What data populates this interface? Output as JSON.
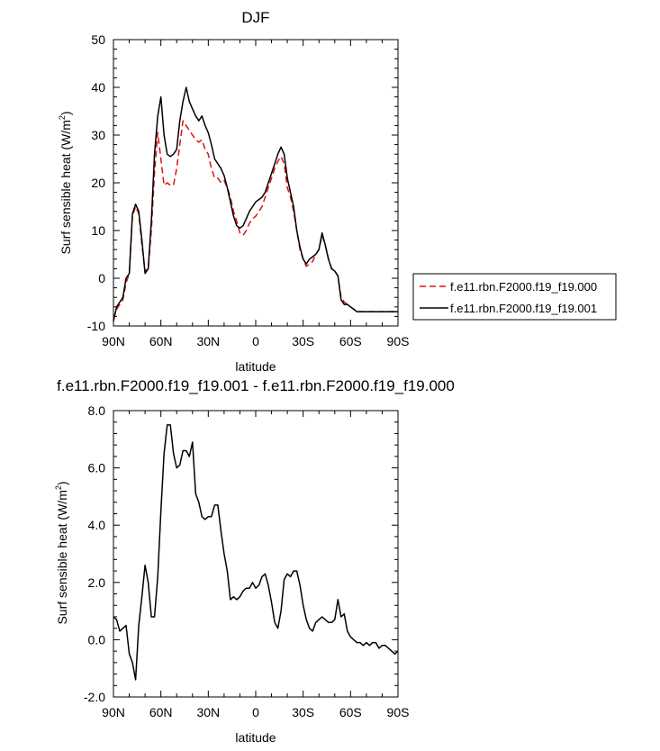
{
  "chart_data": [
    {
      "type": "line",
      "title": "DJF",
      "xlabel": "latitude",
      "ylabel": "Surf sensible heat (W/m",
      "ylabel_sup": "2",
      "ylabel_tail": ")",
      "xlim": [
        90,
        -90
      ],
      "ylim": [
        -10,
        50
      ],
      "xticks": [
        90,
        60,
        30,
        0,
        -30,
        -60,
        -90
      ],
      "xtick_labels": [
        "90N",
        "60N",
        "30N",
        "0",
        "30S",
        "60S",
        "90S"
      ],
      "yticks": [
        -10,
        0,
        10,
        20,
        30,
        40,
        50
      ],
      "ytick_labels": [
        "-10",
        "0",
        "10",
        "20",
        "30",
        "40",
        "50"
      ],
      "legend_position": "right",
      "series": [
        {
          "name": "f.e11.rbn.F2000.f19_f19.000",
          "color": "#dd1111",
          "dash": "dashed",
          "x": [
            90,
            88,
            86,
            84,
            82,
            80,
            78,
            76,
            74,
            72,
            70,
            68,
            66,
            64,
            62,
            60,
            58,
            56,
            54,
            52,
            50,
            48,
            46,
            44,
            42,
            40,
            38,
            36,
            34,
            32,
            30,
            28,
            26,
            24,
            22,
            20,
            18,
            16,
            14,
            12,
            10,
            8,
            6,
            4,
            2,
            0,
            -2,
            -4,
            -6,
            -8,
            -10,
            -12,
            -14,
            -16,
            -18,
            -20,
            -22,
            -24,
            -26,
            -28,
            -30,
            -32,
            -34,
            -36,
            -38,
            -40,
            -42,
            -44,
            -46,
            -48,
            -50,
            -52,
            -54,
            -56,
            -58,
            -60,
            -62,
            -64,
            -66,
            -68,
            -70,
            -72,
            -74,
            -76,
            -78,
            -80,
            -82,
            -84,
            -86,
            -88,
            -90
          ],
          "y": [
            -8.5,
            -6.5,
            -5.5,
            -4.5,
            -1,
            1,
            13,
            15,
            13.5,
            7,
            1.5,
            2,
            10,
            22,
            30.5,
            25,
            19.5,
            20,
            19.5,
            19.5,
            23,
            28,
            33,
            32,
            31,
            30,
            29,
            28.5,
            29,
            27,
            26,
            23,
            21,
            21,
            20,
            20.5,
            19,
            17,
            14,
            12,
            9.5,
            9,
            10,
            11.5,
            12.5,
            13,
            14,
            15,
            17,
            19,
            21,
            23,
            24.5,
            25.5,
            24,
            19,
            17,
            14,
            10,
            6,
            4,
            2.5,
            3,
            3.5,
            5,
            6,
            9,
            7,
            4,
            2,
            1.5,
            0.5,
            -4,
            -5,
            -5.5,
            -6,
            -6.5,
            -7,
            -7,
            -7,
            -7,
            -7,
            -7,
            -7,
            -7,
            -7,
            -7,
            -7,
            -7,
            -7,
            -7
          ],
          "y_note": ""
        },
        {
          "name": "f.e11.rbn.F2000.f19_f19.001",
          "color": "#000000",
          "dash": "solid",
          "x": [
            90,
            88,
            86,
            84,
            82,
            80,
            78,
            76,
            74,
            72,
            70,
            68,
            66,
            64,
            62,
            60,
            58,
            56,
            54,
            52,
            50,
            48,
            46,
            44,
            42,
            40,
            38,
            36,
            34,
            32,
            30,
            28,
            26,
            24,
            22,
            20,
            18,
            16,
            14,
            12,
            10,
            8,
            6,
            4,
            2,
            0,
            -2,
            -4,
            -6,
            -8,
            -10,
            -12,
            -14,
            -16,
            -18,
            -20,
            -22,
            -24,
            -26,
            -28,
            -30,
            -32,
            -34,
            -36,
            -38,
            -40,
            -42,
            -44,
            -46,
            -48,
            -50,
            -52,
            -54,
            -56,
            -58,
            -60,
            -62,
            -64,
            -66,
            -68,
            -70,
            -72,
            -74,
            -76,
            -78,
            -80,
            -82,
            -84,
            -86,
            -88,
            -90
          ],
          "y": [
            -9,
            -6,
            -5,
            -4,
            0,
            1,
            13.5,
            15.5,
            14,
            8,
            1,
            2,
            12,
            26,
            34,
            38,
            30,
            26,
            25.5,
            26,
            27,
            33,
            37,
            40,
            37,
            35.5,
            34,
            33,
            34,
            32,
            30.5,
            28,
            25,
            24,
            23,
            21.5,
            19,
            16,
            13,
            11,
            10.5,
            11,
            12.5,
            14,
            15,
            16,
            16.5,
            17,
            18,
            20,
            22,
            24,
            26,
            27.5,
            26,
            21,
            18,
            15,
            10,
            6.5,
            4,
            3,
            4,
            4.5,
            5,
            6,
            9.5,
            7,
            4,
            2,
            1.5,
            0.5,
            -4.5,
            -5.5,
            -5.5,
            -6,
            -6.5,
            -7,
            -7,
            -7,
            -7,
            -7,
            -7,
            -7,
            -7,
            -7,
            -7,
            -7,
            -7,
            -7,
            -7
          ]
        }
      ]
    },
    {
      "type": "line",
      "title": "f.e11.rbn.F2000.f19_f19.001 - f.e11.rbn.F2000.f19_f19.000",
      "xlabel": "latitude",
      "ylabel": "Surf sensible heat (W/m",
      "ylabel_sup": "2",
      "ylabel_tail": ")",
      "xlim": [
        90,
        -90
      ],
      "ylim": [
        -2,
        8
      ],
      "xticks": [
        90,
        60,
        30,
        0,
        -30,
        -60,
        -90
      ],
      "xtick_labels": [
        "90N",
        "60N",
        "30N",
        "0",
        "30S",
        "60S",
        "90S"
      ],
      "yticks": [
        -2,
        0,
        2,
        4,
        6,
        8
      ],
      "ytick_labels": [
        "-2.0",
        "0.0",
        "2.0",
        "4.0",
        "6.0",
        "8.0"
      ],
      "series": [
        {
          "color": "#000000",
          "dash": "solid",
          "x": [
            90,
            88,
            86,
            84,
            82,
            80,
            78,
            76,
            74,
            72,
            70,
            68,
            66,
            64,
            62,
            60,
            58,
            56,
            54,
            52,
            50,
            48,
            46,
            44,
            42,
            40,
            38,
            36,
            34,
            32,
            30,
            28,
            26,
            24,
            22,
            20,
            18,
            16,
            14,
            12,
            10,
            8,
            6,
            4,
            2,
            0,
            -2,
            -4,
            -6,
            -8,
            -10,
            -12,
            -14,
            -16,
            -18,
            -20,
            -22,
            -24,
            -26,
            -28,
            -30,
            -32,
            -34,
            -36,
            -38,
            -40,
            -42,
            -44,
            -46,
            -48,
            -50,
            -52,
            -54,
            -56,
            -58,
            -60,
            -62,
            -64,
            -66,
            -68,
            -70,
            -72,
            -74,
            -76,
            -78,
            -80,
            -82,
            -84,
            -86,
            -88,
            -90
          ],
          "y": [
            0.8,
            0.7,
            0.3,
            0.4,
            0.5,
            -0.5,
            -0.8,
            -1.4,
            0.5,
            1.5,
            2.6,
            2,
            0.8,
            0.8,
            2.2,
            4.5,
            6.5,
            7.5,
            7.5,
            6.5,
            6,
            6.1,
            6.6,
            6.6,
            6.4,
            6.9,
            5.1,
            4.8,
            4.3,
            4.2,
            4.3,
            4.3,
            4.7,
            4.7,
            3.8,
            3,
            2.4,
            1.4,
            1.5,
            1.4,
            1.5,
            1.7,
            1.8,
            1.8,
            2,
            1.8,
            1.9,
            2.2,
            2.3,
            1.9,
            1.3,
            0.6,
            0.4,
            1,
            2.1,
            2.3,
            2.2,
            2.4,
            2.4,
            1.9,
            1.2,
            0.7,
            0.4,
            0.3,
            0.6,
            0.7,
            0.8,
            0.7,
            0.6,
            0.6,
            0.7,
            1.4,
            0.8,
            0.9,
            0.3,
            0.1,
            0,
            -0.1,
            -0.1,
            -0.2,
            -0.1,
            -0.2,
            -0.1,
            -0.1,
            -0.3,
            -0.2,
            -0.2,
            -0.3,
            -0.4,
            -0.5,
            -0.4
          ]
        }
      ]
    }
  ]
}
